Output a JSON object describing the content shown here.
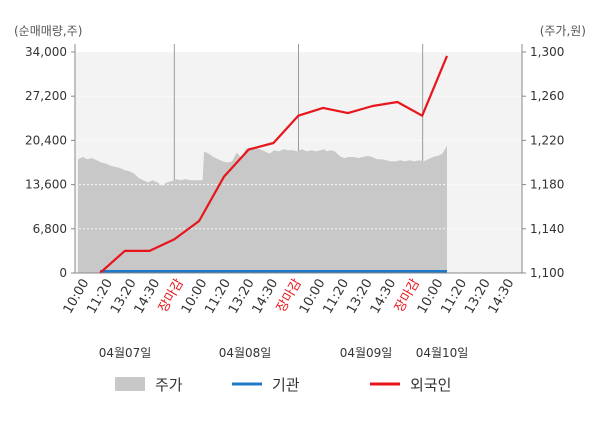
{
  "chart_data": {
    "type": "line",
    "left_axis_unit": "(순매매량,주)",
    "right_axis_unit": "(주가,원)",
    "left_axis": {
      "ylim": [
        0,
        34000
      ],
      "ticks": [
        "0",
        "6,800",
        "13,600",
        "20,400",
        "27,200",
        "34,000"
      ]
    },
    "right_axis": {
      "ylim": [
        1100,
        1300
      ],
      "ticks": [
        "1,100",
        "1,140",
        "1,180",
        "1,220",
        "1,260",
        "1,300"
      ]
    },
    "x_ticks": [
      {
        "label": "10:00",
        "highlight": false
      },
      {
        "label": "11:20",
        "highlight": false
      },
      {
        "label": "13:20",
        "highlight": false
      },
      {
        "label": "14:30",
        "highlight": false
      },
      {
        "label": "장마감",
        "highlight": true
      },
      {
        "label": "10:00",
        "highlight": false
      },
      {
        "label": "11:20",
        "highlight": false
      },
      {
        "label": "13:20",
        "highlight": false
      },
      {
        "label": "14:30",
        "highlight": false
      },
      {
        "label": "장마감",
        "highlight": true
      },
      {
        "label": "10:00",
        "highlight": false
      },
      {
        "label": "11:20",
        "highlight": false
      },
      {
        "label": "13:20",
        "highlight": false
      },
      {
        "label": "14:30",
        "highlight": false
      },
      {
        "label": "장마감",
        "highlight": true
      },
      {
        "label": "10:00",
        "highlight": false
      },
      {
        "label": "11:20",
        "highlight": false
      },
      {
        "label": "13:20",
        "highlight": false
      },
      {
        "label": "14:30",
        "highlight": false
      }
    ],
    "dates": [
      "04월07일",
      "04월08일",
      "04월09일",
      "04월10일"
    ],
    "grid": true,
    "series": [
      {
        "name": "주가",
        "axis": "right",
        "kind": "area",
        "color": "#c8c8c8",
        "points": [
          [
            0.0,
            1203
          ],
          [
            0.15,
            1205
          ],
          [
            0.3,
            1203
          ],
          [
            0.45,
            1204
          ],
          [
            0.6,
            1202
          ],
          [
            0.75,
            1200
          ],
          [
            0.9,
            1199
          ],
          [
            1.05,
            1197
          ],
          [
            1.2,
            1196
          ],
          [
            1.35,
            1195
          ],
          [
            1.5,
            1193
          ],
          [
            1.65,
            1192
          ],
          [
            1.8,
            1190
          ],
          [
            1.95,
            1186
          ],
          [
            2.1,
            1184
          ],
          [
            2.25,
            1182
          ],
          [
            2.4,
            1184
          ],
          [
            2.55,
            1182
          ],
          [
            2.7,
            1179
          ],
          [
            2.85,
            1182
          ],
          [
            3.0,
            1183
          ],
          [
            3.15,
            1185
          ],
          [
            3.3,
            1184
          ],
          [
            3.45,
            1185
          ],
          [
            3.6,
            1184
          ],
          [
            3.75,
            1184
          ],
          [
            3.9,
            1184
          ],
          [
            4.0,
            1184
          ],
          [
            4.05,
            1210
          ],
          [
            4.2,
            1208
          ],
          [
            4.35,
            1205
          ],
          [
            4.5,
            1203
          ],
          [
            4.65,
            1201
          ],
          [
            4.8,
            1200
          ],
          [
            4.95,
            1201
          ],
          [
            5.1,
            1209
          ],
          [
            5.25,
            1204
          ],
          [
            5.4,
            1213
          ],
          [
            5.55,
            1211
          ],
          [
            5.7,
            1213
          ],
          [
            5.85,
            1212
          ],
          [
            6.0,
            1210
          ],
          [
            6.15,
            1208
          ],
          [
            6.3,
            1211
          ],
          [
            6.45,
            1210
          ],
          [
            6.6,
            1212
          ],
          [
            6.75,
            1211
          ],
          [
            6.9,
            1211
          ],
          [
            7.05,
            1210
          ],
          [
            7.2,
            1212
          ],
          [
            7.35,
            1210
          ],
          [
            7.5,
            1211
          ],
          [
            7.65,
            1210
          ],
          [
            7.8,
            1211
          ],
          [
            7.9,
            1212
          ],
          [
            8.0,
            1210
          ],
          [
            8.1,
            1211
          ],
          [
            8.25,
            1210
          ],
          [
            8.4,
            1206
          ],
          [
            8.55,
            1204
          ],
          [
            8.7,
            1205
          ],
          [
            8.85,
            1205
          ],
          [
            9.0,
            1204
          ],
          [
            9.15,
            1205
          ],
          [
            9.3,
            1206
          ],
          [
            9.45,
            1205
          ],
          [
            9.6,
            1203
          ],
          [
            9.75,
            1203
          ],
          [
            9.9,
            1202
          ],
          [
            10.05,
            1201
          ],
          [
            10.2,
            1201
          ],
          [
            10.35,
            1202
          ],
          [
            10.5,
            1201
          ],
          [
            10.65,
            1202
          ],
          [
            10.8,
            1201
          ],
          [
            10.95,
            1202
          ],
          [
            11.1,
            1201
          ],
          [
            11.25,
            1203
          ],
          [
            11.4,
            1205
          ],
          [
            11.55,
            1206
          ],
          [
            11.7,
            1208
          ],
          [
            11.85,
            1215
          ]
        ]
      },
      {
        "name": "기관",
        "axis": "left",
        "kind": "line",
        "color": "#1f78c8",
        "points": [
          [
            0.0,
            0
          ],
          [
            11.85,
            0
          ]
        ]
      },
      {
        "name": "외국인",
        "axis": "left",
        "kind": "line",
        "color": "#e8151c",
        "points": [
          [
            1.0,
            0
          ],
          [
            2.0,
            3400
          ],
          [
            3.0,
            3400
          ],
          [
            4.0,
            5200
          ],
          [
            5.0,
            8000
          ],
          [
            6.0,
            14800
          ],
          [
            7.0,
            19000
          ],
          [
            8.0,
            20000
          ],
          [
            9.0,
            24200
          ],
          [
            10.0,
            25400
          ],
          [
            11.0,
            24600
          ],
          [
            12.0,
            25700
          ],
          [
            13.0,
            26300
          ],
          [
            14.0,
            24200
          ],
          [
            15.0,
            33400
          ]
        ]
      }
    ],
    "legend": [
      {
        "label": "주가",
        "kind": "area",
        "color": "#c8c8c8"
      },
      {
        "label": "기관",
        "kind": "line",
        "color": "#1f78c8"
      },
      {
        "label": "외국인",
        "kind": "line",
        "color": "#e8151c"
      }
    ],
    "legend_position": "bottom"
  }
}
